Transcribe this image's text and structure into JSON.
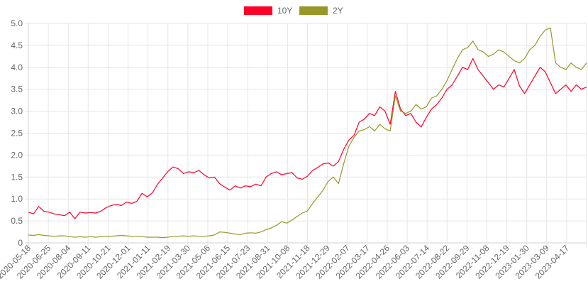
{
  "chart_data": {
    "type": "line",
    "title": "",
    "xlabel": "",
    "ylabel": "",
    "ylim": [
      0,
      5
    ],
    "y_ticks": [
      "0",
      "0.5",
      "1.0",
      "1.5",
      "2.0",
      "2.5",
      "3.0",
      "3.5",
      "4.0",
      "4.5",
      "5.0"
    ],
    "grid": true,
    "legend_position": "top-center",
    "x_tick_labels": [
      "2020-05-18",
      "2020-06-25",
      "2020-08-04",
      "2020-09-11",
      "2020-10-21",
      "2020-12-01",
      "2021-01-11",
      "2021-02-19",
      "2021-03-30",
      "2021-05-06",
      "2021-06-15",
      "2021-07-23",
      "2021-08-31",
      "2021-10-08",
      "2021-11-18",
      "2021-12-29",
      "2022-02-07",
      "2022-03-17",
      "2022-04-26",
      "2022-06-03",
      "2022-07-14",
      "2022-08-22",
      "2022-09-29",
      "2022-11-08",
      "2022-12-19",
      "2023-01-30",
      "2023-03-09",
      "2023-04-17"
    ],
    "series": [
      {
        "name": "10Y",
        "color": "#ff0029",
        "values": [
          0.7,
          0.66,
          0.83,
          0.72,
          0.7,
          0.66,
          0.64,
          0.62,
          0.7,
          0.55,
          0.7,
          0.68,
          0.69,
          0.68,
          0.72,
          0.8,
          0.85,
          0.88,
          0.85,
          0.93,
          0.9,
          0.95,
          1.13,
          1.05,
          1.14,
          1.34,
          1.48,
          1.63,
          1.73,
          1.69,
          1.58,
          1.62,
          1.6,
          1.65,
          1.55,
          1.48,
          1.5,
          1.35,
          1.27,
          1.2,
          1.3,
          1.25,
          1.3,
          1.28,
          1.34,
          1.3,
          1.5,
          1.58,
          1.62,
          1.55,
          1.58,
          1.6,
          1.48,
          1.45,
          1.52,
          1.65,
          1.72,
          1.8,
          1.82,
          1.75,
          1.85,
          2.13,
          2.34,
          2.45,
          2.75,
          2.82,
          2.95,
          2.9,
          3.1,
          3.0,
          2.7,
          3.45,
          3.05,
          2.9,
          2.95,
          2.75,
          2.64,
          2.86,
          3.05,
          3.15,
          3.3,
          3.5,
          3.6,
          3.8,
          4.0,
          3.95,
          4.2,
          3.95,
          3.8,
          3.65,
          3.5,
          3.6,
          3.55,
          3.75,
          3.95,
          3.58,
          3.4,
          3.6,
          3.8,
          4.0,
          3.9,
          3.65,
          3.4,
          3.5,
          3.6,
          3.45,
          3.6,
          3.5,
          3.55
        ]
      },
      {
        "name": "2Y",
        "color": "#999729",
        "values": [
          0.18,
          0.17,
          0.19,
          0.17,
          0.16,
          0.15,
          0.16,
          0.16,
          0.14,
          0.13,
          0.14,
          0.13,
          0.14,
          0.13,
          0.14,
          0.14,
          0.15,
          0.16,
          0.17,
          0.16,
          0.15,
          0.15,
          0.14,
          0.13,
          0.13,
          0.13,
          0.12,
          0.13,
          0.15,
          0.15,
          0.16,
          0.15,
          0.16,
          0.15,
          0.15,
          0.16,
          0.18,
          0.25,
          0.24,
          0.22,
          0.2,
          0.19,
          0.22,
          0.23,
          0.22,
          0.25,
          0.3,
          0.34,
          0.4,
          0.48,
          0.45,
          0.52,
          0.6,
          0.68,
          0.73,
          0.9,
          1.05,
          1.2,
          1.4,
          1.5,
          1.35,
          1.8,
          2.2,
          2.4,
          2.55,
          2.58,
          2.65,
          2.55,
          2.7,
          2.6,
          2.55,
          3.35,
          3.0,
          2.95,
          3.0,
          3.15,
          3.05,
          3.1,
          3.3,
          3.35,
          3.5,
          3.7,
          3.95,
          4.2,
          4.4,
          4.45,
          4.6,
          4.4,
          4.35,
          4.25,
          4.3,
          4.4,
          4.35,
          4.25,
          4.15,
          4.1,
          4.2,
          4.4,
          4.5,
          4.7,
          4.85,
          4.9,
          4.1,
          4.0,
          3.95,
          4.1,
          4.0,
          3.95,
          4.1
        ]
      }
    ]
  }
}
